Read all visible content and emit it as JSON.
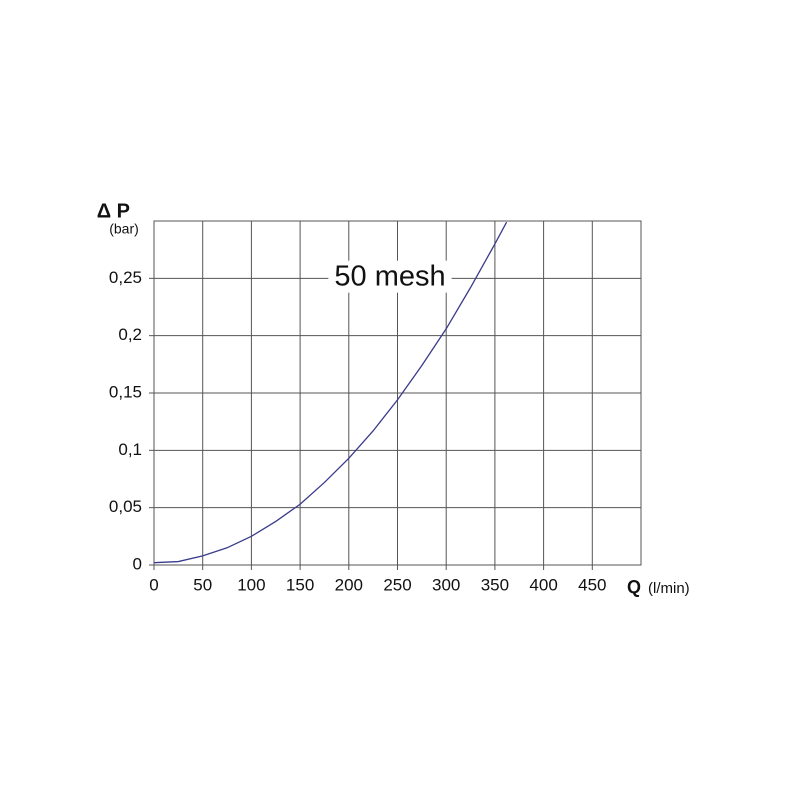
{
  "chart_data": {
    "type": "line",
    "y_label": "Δ P",
    "y_unit": "(bar)",
    "x_label": "Q",
    "x_unit": "(l/min)",
    "annotation": "50 mesh",
    "x": [
      0,
      25,
      50,
      75,
      100,
      125,
      150,
      175,
      200,
      225,
      250,
      275,
      300,
      325,
      350,
      362
    ],
    "values": [
      0.002,
      0.003,
      0.008,
      0.015,
      0.025,
      0.038,
      0.053,
      0.072,
      0.093,
      0.117,
      0.144,
      0.174,
      0.206,
      0.242,
      0.28,
      0.299
    ],
    "color": "#3a3a8c",
    "xlim": [
      0,
      500
    ],
    "xticks": [
      0,
      50,
      100,
      150,
      200,
      250,
      300,
      350,
      400,
      450
    ],
    "ylim": [
      0,
      0.3
    ],
    "yticks": [
      0,
      {
        "value": 0.05,
        "label": "0,05"
      },
      {
        "value": 0.1,
        "label": "0,1"
      },
      {
        "value": 0.15,
        "label": "0,15"
      },
      {
        "value": 0.2,
        "label": "0,2"
      },
      {
        "value": 0.25,
        "label": "0,25"
      }
    ],
    "grid": true
  }
}
